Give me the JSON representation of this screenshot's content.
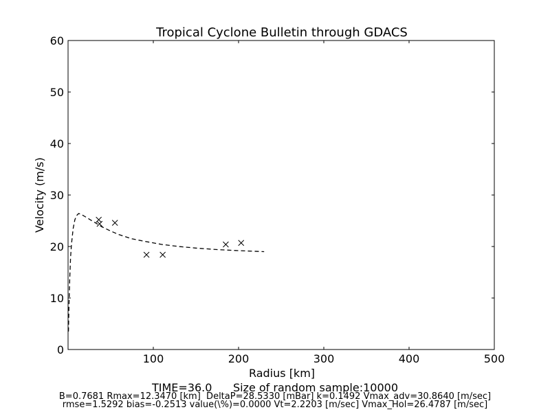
{
  "chart_data": {
    "type": "scatter",
    "title": "Tropical Cyclone Bulletin through GDACS",
    "xlabel": "Radius [km]",
    "ylabel": "Velocity (m/s)",
    "xlim": [
      0,
      500
    ],
    "ylim": [
      0,
      60
    ],
    "xticks": [
      100,
      200,
      300,
      400,
      500
    ],
    "yticks": [
      0,
      10,
      20,
      30,
      40,
      50,
      60
    ],
    "grid": false,
    "series": [
      {
        "marker": "x",
        "points": [
          {
            "x": 36,
            "y": 25.2
          },
          {
            "x": 37,
            "y": 24.4
          },
          {
            "x": 55,
            "y": 24.6
          },
          {
            "x": 92,
            "y": 18.4
          },
          {
            "x": 111,
            "y": 18.4
          },
          {
            "x": 185,
            "y": 20.4
          },
          {
            "x": 203,
            "y": 20.7
          }
        ]
      },
      {
        "line_style": "dashed",
        "points": [
          {
            "x": 0.5,
            "y": 3.5
          },
          {
            "x": 1,
            "y": 8
          },
          {
            "x": 2,
            "y": 14
          },
          {
            "x": 3,
            "y": 18
          },
          {
            "x": 4,
            "y": 20.5
          },
          {
            "x": 6,
            "y": 23.5
          },
          {
            "x": 8,
            "y": 25.2
          },
          {
            "x": 10,
            "y": 26
          },
          {
            "x": 12.3,
            "y": 26.4
          },
          {
            "x": 15,
            "y": 26.3
          },
          {
            "x": 20,
            "y": 25.8
          },
          {
            "x": 30,
            "y": 24.8
          },
          {
            "x": 40,
            "y": 23.8
          },
          {
            "x": 50,
            "y": 23
          },
          {
            "x": 60,
            "y": 22.3
          },
          {
            "x": 75,
            "y": 21.5
          },
          {
            "x": 90,
            "y": 21
          },
          {
            "x": 110,
            "y": 20.4
          },
          {
            "x": 130,
            "y": 20
          },
          {
            "x": 150,
            "y": 19.7
          },
          {
            "x": 175,
            "y": 19.4
          },
          {
            "x": 200,
            "y": 19.2
          },
          {
            "x": 230,
            "y": 19
          }
        ]
      }
    ]
  },
  "captions": {
    "line1": "TIME=36.0      Size of random sample:10000",
    "line2": "B=0.7681 Rmax=12.3470 [km]  DeltaP=28.5330 [mBar] k=0.1492 Vmax_adv=30.8640 [m/sec]",
    "line3": "rmse=1.5292 bias=-0.2513 value(\\%)=0.0000 Vt=2.2203 [m/sec] Vmax_Hol=26.4787 [m/sec]"
  }
}
